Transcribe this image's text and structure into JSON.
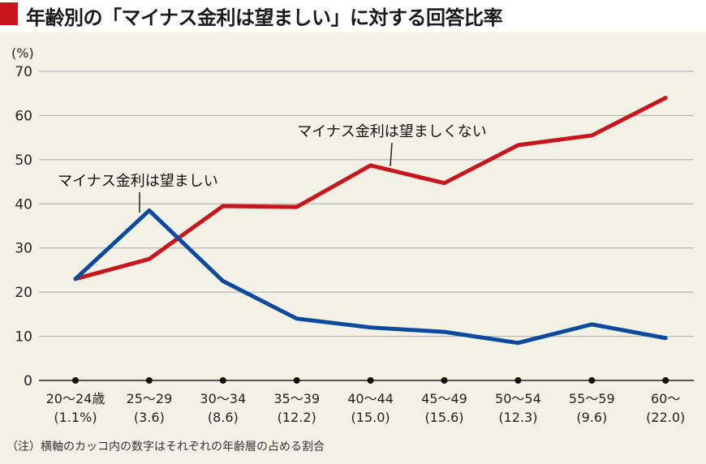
{
  "title": "年齢別の「マイナス金利は望ましい」に対する回答比率",
  "note": "（注）横軸のカッコ内の数字はそれぞれの年齢層の占める割合",
  "chart_data": {
    "type": "line",
    "ylabel": "(%)",
    "ylim": [
      0,
      70
    ],
    "yticks": [
      "0",
      "10",
      "20",
      "30",
      "40",
      "50",
      "60",
      "70"
    ],
    "categories": [
      "20〜24歳",
      "25〜29",
      "30〜34",
      "35〜39",
      "40〜44",
      "45〜49",
      "50〜54",
      "55〜59",
      "60〜"
    ],
    "category_shares": [
      "(1.1%)",
      "(3.6)",
      "(8.6)",
      "(12.2)",
      "(15.0)",
      "(15.6)",
      "(12.3)",
      "(9.6)",
      "(22.0)"
    ],
    "grid": true,
    "series": [
      {
        "name": "マイナス金利は望ましくない",
        "color": "#c8161d",
        "values": [
          23,
          27.5,
          39.5,
          39.3,
          48.7,
          44.7,
          53.3,
          55.5,
          64
        ]
      },
      {
        "name": "マイナス金利は望ましい",
        "color": "#0c4a9e",
        "values": [
          23,
          38.5,
          22.5,
          14,
          12,
          11,
          8.5,
          12.7,
          9.6
        ]
      }
    ]
  }
}
